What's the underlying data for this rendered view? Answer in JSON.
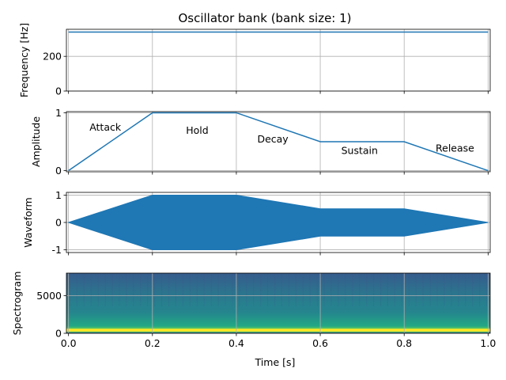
{
  "chart_data": [
    {
      "type": "line",
      "title": "Oscillator bank (bank size: 1)",
      "xlabel": "",
      "ylabel": "Frequency [Hz]",
      "xlim": [
        -0.005,
        1.005
      ],
      "ylim": [
        0,
        356
      ],
      "grid": true,
      "yticks": [
        0,
        200
      ],
      "series": [
        {
          "x": [
            0,
            1
          ],
          "y": [
            340,
            340
          ],
          "color": "#1f77b4"
        }
      ]
    },
    {
      "type": "line",
      "title": "",
      "xlabel": "",
      "ylabel": "Amplitude",
      "xlim": [
        -0.005,
        1.005
      ],
      "ylim": [
        -0.02,
        1.02
      ],
      "grid": true,
      "yticks": [
        0,
        1
      ],
      "series": [
        {
          "x": [
            0,
            0.2,
            0.4,
            0.6,
            0.8,
            1.0
          ],
          "y": [
            0,
            1,
            1,
            0.5,
            0.5,
            0
          ],
          "color": "#1f77b4"
        }
      ],
      "annotations": [
        {
          "text": "Attack",
          "x": 0.05,
          "y": 0.75
        },
        {
          "text": "Hold",
          "x": 0.28,
          "y": 0.7
        },
        {
          "text": "Decay",
          "x": 0.45,
          "y": 0.55
        },
        {
          "text": "Sustain",
          "x": 0.65,
          "y": 0.35
        },
        {
          "text": "Release",
          "x": 0.875,
          "y": 0.39
        }
      ]
    },
    {
      "type": "area",
      "title": "",
      "xlabel": "",
      "ylabel": "Waveform",
      "xlim": [
        -0.005,
        1.005
      ],
      "ylim": [
        -1.1,
        1.1
      ],
      "grid": true,
      "yticks": [
        -1,
        0,
        1
      ],
      "envelope": {
        "x": [
          0,
          0.2,
          0.4,
          0.6,
          0.8,
          1.0
        ],
        "upper": [
          0,
          1,
          1,
          0.5,
          0.5,
          0
        ],
        "lower": [
          0,
          -1,
          -1,
          -0.5,
          -0.5,
          0
        ]
      },
      "color": "#1f77b4"
    },
    {
      "type": "heatmap",
      "title": "",
      "xlabel": "Time [s]",
      "ylabel": "Spectrogram",
      "xlim": [
        -0.005,
        1.005
      ],
      "ylim": [
        0,
        8000
      ],
      "grid": true,
      "colormap": "viridis",
      "yticks": [
        0,
        5000
      ],
      "xticks": [
        0.0,
        0.2,
        0.4,
        0.6,
        0.8,
        1.0
      ],
      "xtick_labels": [
        "0.0",
        "0.2",
        "0.4",
        "0.6",
        "0.8",
        "1.0"
      ],
      "tone_band_hz": 340
    }
  ],
  "colors": {
    "line": "#1f77b4",
    "grid": "#b0b0b0",
    "frame": "#000000"
  }
}
